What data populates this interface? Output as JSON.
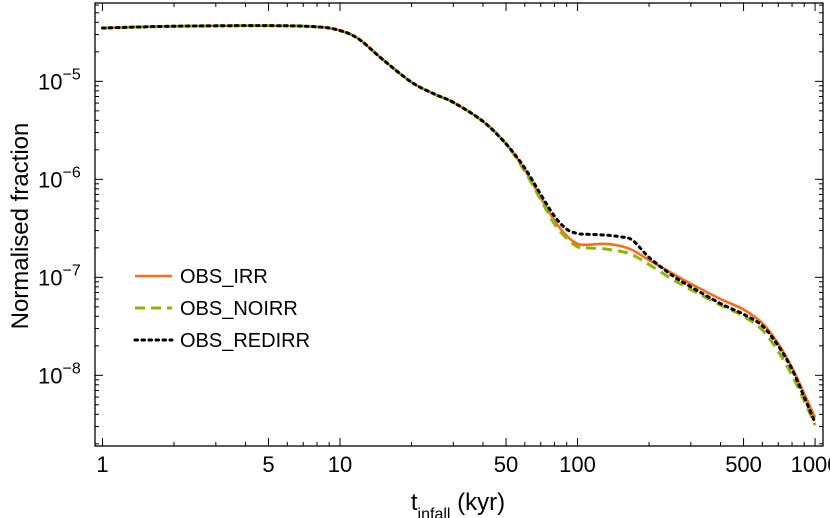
{
  "chart_data": {
    "type": "line",
    "title": "",
    "xlabel_main": "t",
    "xlabel_sub": "infall",
    "xlabel_unit": " (kyr)",
    "ylabel": "Normalised fraction",
    "xscale": "log",
    "yscale": "log",
    "xlim": [
      0.93,
      1080
    ],
    "ylim": [
      1.9e-09,
      6.3e-05
    ],
    "x_ticks": [
      {
        "value": 1,
        "label": "1"
      },
      {
        "value": 5,
        "label": "5"
      },
      {
        "value": 10,
        "label": "10"
      },
      {
        "value": 50,
        "label": "50"
      },
      {
        "value": 100,
        "label": "100"
      },
      {
        "value": 500,
        "label": "500"
      },
      {
        "value": 1000,
        "label": "1000"
      }
    ],
    "y_ticks": [
      {
        "value": 1e-05,
        "base": "10",
        "exp": "−5"
      },
      {
        "value": 1e-06,
        "base": "10",
        "exp": "−6"
      },
      {
        "value": 1e-07,
        "base": "10",
        "exp": "−7"
      },
      {
        "value": 1e-08,
        "base": "10",
        "exp": "−8"
      }
    ],
    "grid": false,
    "legend_position": "left-middle",
    "series": [
      {
        "name": "OBS_IRR",
        "color": "#ff6a1a",
        "style": "solid",
        "x": [
          1,
          2,
          5,
          8,
          10,
          12,
          15,
          20,
          25,
          30,
          40,
          50,
          60,
          70,
          80,
          90,
          100,
          110,
          130,
          150,
          170,
          200,
          250,
          300,
          400,
          500,
          600,
          700,
          800,
          900,
          1000
        ],
        "y": [
          3.5e-05,
          3.65e-05,
          3.7e-05,
          3.6e-05,
          3.3e-05,
          2.7e-05,
          1.7e-05,
          9.8e-06,
          7.4e-06,
          6.1e-06,
          3.9e-06,
          2.3e-06,
          1.25e-06,
          6.5e-07,
          3.8e-07,
          2.65e-07,
          2.2e-07,
          2.15e-07,
          2.2e-07,
          2.1e-07,
          1.9e-07,
          1.5e-07,
          1.1e-07,
          8.6e-08,
          6e-08,
          4.7e-08,
          3.4e-08,
          2.1e-08,
          1.2e-08,
          6.5e-09,
          3.7e-09
        ]
      },
      {
        "name": "OBS_NOIRR",
        "color": "#8db600",
        "style": "dashed",
        "x": [
          1,
          2,
          5,
          8,
          10,
          12,
          15,
          20,
          25,
          30,
          40,
          50,
          60,
          70,
          80,
          90,
          100,
          110,
          130,
          150,
          170,
          200,
          250,
          300,
          400,
          500,
          600,
          700,
          800,
          900,
          1000
        ],
        "y": [
          3.5e-05,
          3.65e-05,
          3.7e-05,
          3.6e-05,
          3.3e-05,
          2.7e-05,
          1.7e-05,
          9.8e-06,
          7.4e-06,
          6.1e-06,
          3.9e-06,
          2.3e-06,
          1.2e-06,
          6.2e-07,
          3.5e-07,
          2.5e-07,
          2.05e-07,
          2e-07,
          1.95e-07,
          1.85e-07,
          1.7e-07,
          1.35e-07,
          9.6e-08,
          7.5e-08,
          5.2e-08,
          4e-08,
          2.9e-08,
          1.75e-08,
          1e-08,
          5.5e-09,
          3.1e-09
        ]
      },
      {
        "name": "OBS_REDIRR",
        "color": "#000000",
        "style": "dotted",
        "x": [
          1,
          2,
          5,
          8,
          10,
          12,
          15,
          20,
          25,
          30,
          40,
          50,
          60,
          70,
          80,
          90,
          100,
          110,
          130,
          150,
          170,
          200,
          250,
          300,
          400,
          500,
          600,
          700,
          800,
          900,
          1000
        ],
        "y": [
          3.5e-05,
          3.65e-05,
          3.7e-05,
          3.6e-05,
          3.3e-05,
          2.7e-05,
          1.7e-05,
          9.8e-06,
          7.4e-06,
          6.1e-06,
          3.9e-06,
          2.3e-06,
          1.3e-06,
          7e-07,
          4.2e-07,
          3.1e-07,
          2.8e-07,
          2.75e-07,
          2.7e-07,
          2.6e-07,
          2.4e-07,
          1.6e-07,
          1.05e-07,
          8e-08,
          5.4e-08,
          4.2e-08,
          3.2e-08,
          2e-08,
          1.15e-08,
          6e-09,
          3.3e-09
        ]
      }
    ]
  }
}
